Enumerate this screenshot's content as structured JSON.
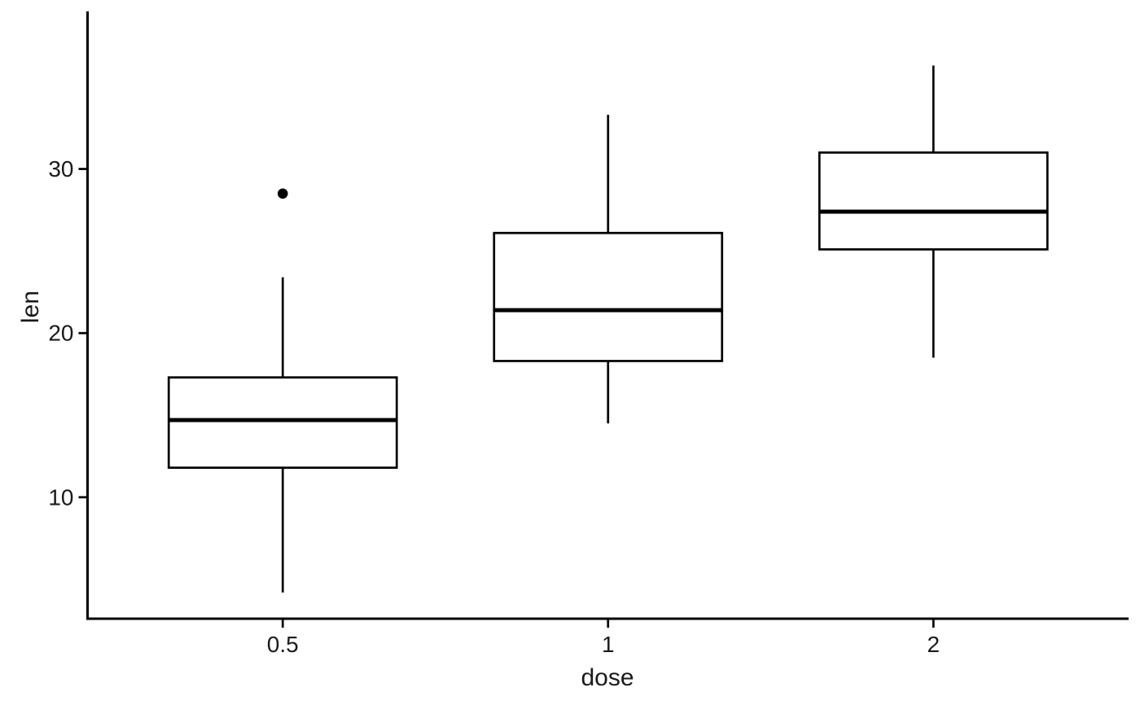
{
  "figure": {
    "background_color": "#ffffff",
    "line_color": "#000000",
    "text_color": "#1a1a1a"
  },
  "chart_data": {
    "type": "boxplot",
    "title": "",
    "xlabel": "dose",
    "ylabel": "len",
    "categories": [
      "0.5",
      "1",
      "2"
    ],
    "y_axis_ticks": [
      10,
      20,
      30
    ],
    "ylim": [
      2.6,
      39.6
    ],
    "grid": false,
    "legend": "none",
    "series": [
      {
        "category": "0.5",
        "lower_whisker": 4.2,
        "q1": 11.8,
        "median": 14.7,
        "q3": 17.3,
        "upper_whisker": 23.4,
        "outliers": [
          28.5
        ]
      },
      {
        "category": "1",
        "lower_whisker": 14.5,
        "q1": 18.3,
        "median": 21.4,
        "q3": 26.1,
        "upper_whisker": 33.3,
        "outliers": []
      },
      {
        "category": "2",
        "lower_whisker": 18.5,
        "q1": 25.1,
        "median": 27.4,
        "q3": 31.0,
        "upper_whisker": 36.3,
        "outliers": []
      }
    ]
  }
}
